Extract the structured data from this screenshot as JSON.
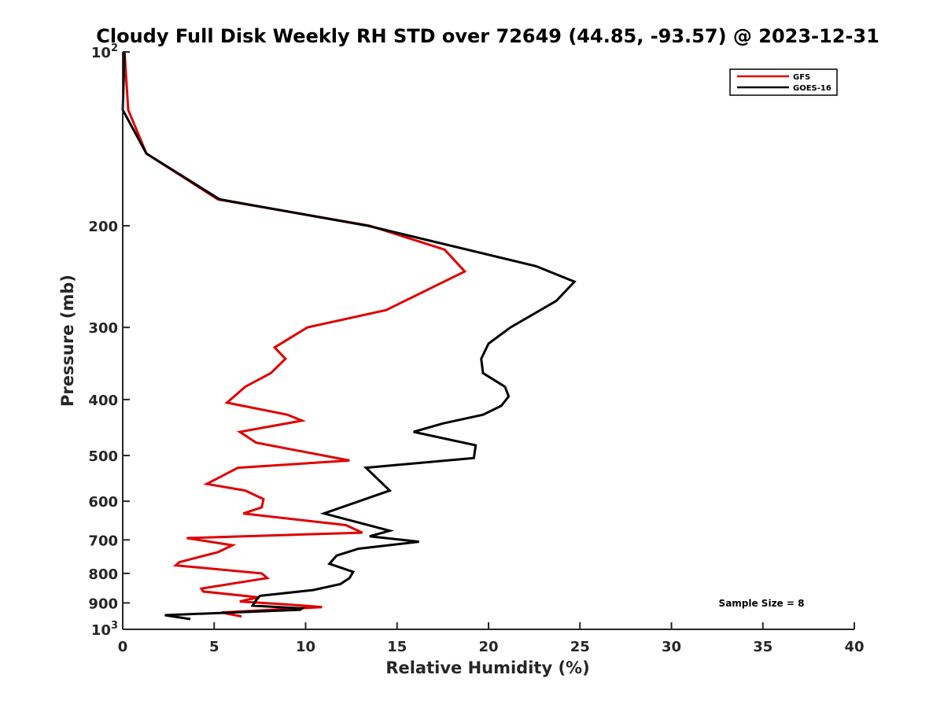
{
  "chart_data": {
    "type": "line",
    "title": "Cloudy Full Disk Weekly RH STD over 72649 (44.85, -93.57) @ 2023-12-31",
    "xlabel": "Relative Humidity (%)",
    "ylabel": "Pressure (mb)",
    "xlim": [
      0,
      40
    ],
    "ylim": [
      100,
      1000
    ],
    "yscale": "log",
    "y_reversed": true,
    "x_ticks": [
      "0",
      "5",
      "10",
      "15",
      "20",
      "25",
      "30",
      "35",
      "40"
    ],
    "y_ticks": [
      {
        "value": 100,
        "base": "10",
        "exp": "2"
      },
      {
        "value": 200,
        "label": "200"
      },
      {
        "value": 300,
        "label": "300"
      },
      {
        "value": 400,
        "label": "400"
      },
      {
        "value": 500,
        "label": "500"
      },
      {
        "value": 600,
        "label": "600"
      },
      {
        "value": 700,
        "label": "700"
      },
      {
        "value": 800,
        "label": "800"
      },
      {
        "value": 900,
        "label": "900"
      },
      {
        "value": 1000,
        "base": "10",
        "exp": "3"
      }
    ],
    "grid": false,
    "legend_position": "top-right",
    "annotation": "Sample Size = 8",
    "series": [
      {
        "name": "GFS",
        "color": "#e00000",
        "points": [
          [
            0.1,
            100
          ],
          [
            0.3,
            126
          ],
          [
            1.3,
            150
          ],
          [
            5.2,
            180
          ],
          [
            13.5,
            200
          ],
          [
            17.6,
            220
          ],
          [
            18.7,
            240
          ],
          [
            14.4,
            280
          ],
          [
            10.1,
            300
          ],
          [
            8.3,
            325
          ],
          [
            8.9,
            340
          ],
          [
            8.1,
            360
          ],
          [
            6.7,
            380
          ],
          [
            5.7,
            405
          ],
          [
            9.0,
            425
          ],
          [
            9.8,
            435
          ],
          [
            6.4,
            455
          ],
          [
            7.3,
            475
          ],
          [
            12.4,
            510
          ],
          [
            6.3,
            525
          ],
          [
            4.6,
            560
          ],
          [
            6.7,
            575
          ],
          [
            7.7,
            595
          ],
          [
            7.6,
            615
          ],
          [
            6.6,
            630
          ],
          [
            12.2,
            660
          ],
          [
            13.1,
            680
          ],
          [
            3.5,
            695
          ],
          [
            6.0,
            715
          ],
          [
            5.2,
            735
          ],
          [
            3.1,
            765
          ],
          [
            2.9,
            775
          ],
          [
            7.6,
            800
          ],
          [
            7.9,
            815
          ],
          [
            4.3,
            850
          ],
          [
            4.4,
            860
          ],
          [
            7.4,
            880
          ],
          [
            6.4,
            895
          ],
          [
            8.9,
            905
          ],
          [
            10.9,
            915
          ],
          [
            5.4,
            935
          ],
          [
            6.5,
            950
          ]
        ]
      },
      {
        "name": "GOES-16",
        "color": "#000000",
        "points": [
          [
            0.1,
            100
          ],
          [
            0.0,
            126
          ],
          [
            1.3,
            150
          ],
          [
            5.3,
            180
          ],
          [
            13.4,
            200
          ],
          [
            22.6,
            235
          ],
          [
            24.7,
            250
          ],
          [
            23.7,
            270
          ],
          [
            21.2,
            300
          ],
          [
            20.0,
            320
          ],
          [
            19.6,
            340
          ],
          [
            19.7,
            360
          ],
          [
            20.9,
            380
          ],
          [
            21.1,
            395
          ],
          [
            20.7,
            410
          ],
          [
            19.7,
            425
          ],
          [
            17.5,
            440
          ],
          [
            15.9,
            455
          ],
          [
            19.3,
            480
          ],
          [
            19.2,
            505
          ],
          [
            13.3,
            525
          ],
          [
            14.6,
            575
          ],
          [
            12.6,
            605
          ],
          [
            11.0,
            630
          ],
          [
            14.6,
            675
          ],
          [
            13.5,
            690
          ],
          [
            16.2,
            705
          ],
          [
            12.9,
            725
          ],
          [
            11.7,
            745
          ],
          [
            11.3,
            770
          ],
          [
            12.6,
            795
          ],
          [
            12.4,
            815
          ],
          [
            11.9,
            835
          ],
          [
            10.4,
            855
          ],
          [
            7.5,
            875
          ],
          [
            7.3,
            890
          ],
          [
            7.1,
            910
          ],
          [
            9.8,
            920
          ],
          [
            9.7,
            925
          ],
          [
            2.3,
            945
          ],
          [
            3.7,
            960
          ]
        ]
      }
    ]
  }
}
